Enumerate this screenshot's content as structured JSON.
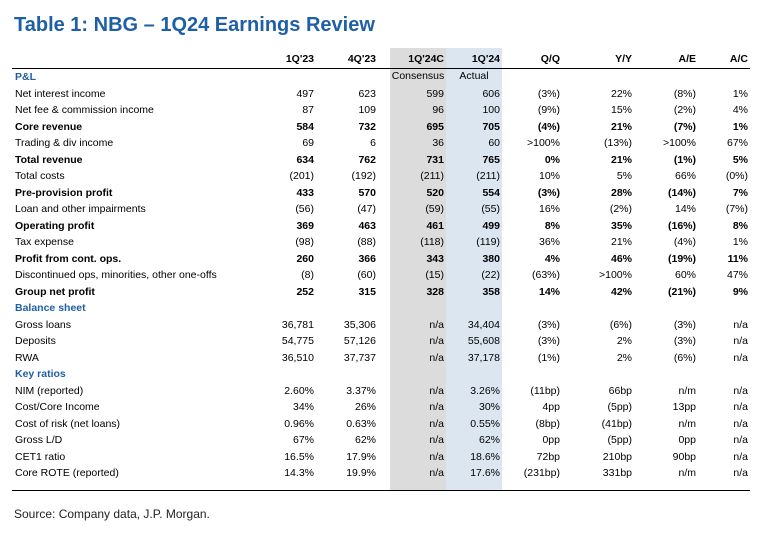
{
  "title": "Table 1: NBG – 1Q24 Earnings Review",
  "columns": [
    "1Q'23",
    "4Q'23",
    "1Q'24C",
    "1Q'24",
    "Q/Q",
    "Y/Y",
    "A/E",
    "A/C"
  ],
  "subheaders": {
    "c2": "Consensus",
    "c3": "Actual"
  },
  "rows": [
    {
      "label": "P&L",
      "type": "section",
      "values": [
        "",
        "",
        "",
        "",
        "",
        "",
        "",
        ""
      ]
    },
    {
      "label": "Net interest income",
      "type": "normal",
      "values": [
        "497",
        "623",
        "599",
        "606",
        "(3%)",
        "22%",
        "(8%)",
        "1%"
      ]
    },
    {
      "label": "Net fee & commission income",
      "type": "normal",
      "values": [
        "87",
        "109",
        "96",
        "100",
        "(9%)",
        "15%",
        "(2%)",
        "4%"
      ]
    },
    {
      "label": "Core revenue",
      "type": "bold",
      "values": [
        "584",
        "732",
        "695",
        "705",
        "(4%)",
        "21%",
        "(7%)",
        "1%"
      ]
    },
    {
      "label": "Trading & div income",
      "type": "normal",
      "values": [
        "69",
        "6",
        "36",
        "60",
        ">100%",
        "(13%)",
        ">100%",
        "67%"
      ]
    },
    {
      "label": "Total revenue",
      "type": "bold",
      "values": [
        "634",
        "762",
        "731",
        "765",
        "0%",
        "21%",
        "(1%)",
        "5%"
      ]
    },
    {
      "label": "Total costs",
      "type": "normal",
      "values": [
        "(201)",
        "(192)",
        "(211)",
        "(211)",
        "10%",
        "5%",
        "66%",
        "(0%)"
      ]
    },
    {
      "label": "Pre-provision profit",
      "type": "bold",
      "values": [
        "433",
        "570",
        "520",
        "554",
        "(3%)",
        "28%",
        "(14%)",
        "7%"
      ]
    },
    {
      "label": "Loan and other impairments",
      "type": "normal",
      "values": [
        "(56)",
        "(47)",
        "(59)",
        "(55)",
        "16%",
        "(2%)",
        "14%",
        "(7%)"
      ]
    },
    {
      "label": "Operating profit",
      "type": "bold",
      "values": [
        "369",
        "463",
        "461",
        "499",
        "8%",
        "35%",
        "(16%)",
        "8%"
      ]
    },
    {
      "label": "Tax expense",
      "type": "normal",
      "values": [
        "(98)",
        "(88)",
        "(118)",
        "(119)",
        "36%",
        "21%",
        "(4%)",
        "1%"
      ]
    },
    {
      "label": "Profit from cont. ops.",
      "type": "bold",
      "values": [
        "260",
        "366",
        "343",
        "380",
        "4%",
        "46%",
        "(19%)",
        "11%"
      ]
    },
    {
      "label": "Discontinued ops, minorities, other one-offs",
      "type": "normal",
      "values": [
        "(8)",
        "(60)",
        "(15)",
        "(22)",
        "(63%)",
        ">100%",
        "60%",
        "47%"
      ]
    },
    {
      "label": "Group net profit",
      "type": "bold",
      "values": [
        "252",
        "315",
        "328",
        "358",
        "14%",
        "42%",
        "(21%)",
        "9%"
      ]
    },
    {
      "label": "Balance sheet",
      "type": "section",
      "values": [
        "",
        "",
        "",
        "",
        "",
        "",
        "",
        ""
      ]
    },
    {
      "label": "Gross loans",
      "type": "normal",
      "values": [
        "36,781",
        "35,306",
        "n/a",
        "34,404",
        "(3%)",
        "(6%)",
        "(3%)",
        "n/a"
      ]
    },
    {
      "label": "Deposits",
      "type": "normal",
      "values": [
        "54,775",
        "57,126",
        "n/a",
        "55,608",
        "(3%)",
        "2%",
        "(3%)",
        "n/a"
      ]
    },
    {
      "label": "RWA",
      "type": "normal",
      "values": [
        "36,510",
        "37,737",
        "n/a",
        "37,178",
        "(1%)",
        "2%",
        "(6%)",
        "n/a"
      ]
    },
    {
      "label": "Key ratios",
      "type": "section",
      "values": [
        "",
        "",
        "",
        "",
        "",
        "",
        "",
        ""
      ]
    },
    {
      "label": "NIM (reported)",
      "type": "normal",
      "values": [
        "2.60%",
        "3.37%",
        "n/a",
        "3.26%",
        "(11bp)",
        "66bp",
        "n/m",
        "n/a"
      ]
    },
    {
      "label": "Cost/Core Income",
      "type": "normal",
      "values": [
        "34%",
        "26%",
        "n/a",
        "30%",
        "4pp",
        "(5pp)",
        "13pp",
        "n/a"
      ]
    },
    {
      "label": "Cost of risk (net loans)",
      "type": "normal",
      "values": [
        "0.96%",
        "0.63%",
        "n/a",
        "0.55%",
        "(8bp)",
        "(41bp)",
        "n/m",
        "n/a"
      ]
    },
    {
      "label": "Gross L/D",
      "type": "normal",
      "values": [
        "67%",
        "62%",
        "n/a",
        "62%",
        "0pp",
        "(5pp)",
        "0pp",
        "n/a"
      ]
    },
    {
      "label": "CET1 ratio",
      "type": "normal",
      "values": [
        "16.5%",
        "17.9%",
        "n/a",
        "18.6%",
        "72bp",
        "210bp",
        "90bp",
        "n/a"
      ]
    },
    {
      "label": "Core ROTE (reported)",
      "type": "normal",
      "values": [
        "14.3%",
        "19.9%",
        "n/a",
        "17.6%",
        "(231bp)",
        "331bp",
        "n/m",
        "n/a"
      ]
    }
  ],
  "source": "Source: Company data, J.P. Morgan."
}
